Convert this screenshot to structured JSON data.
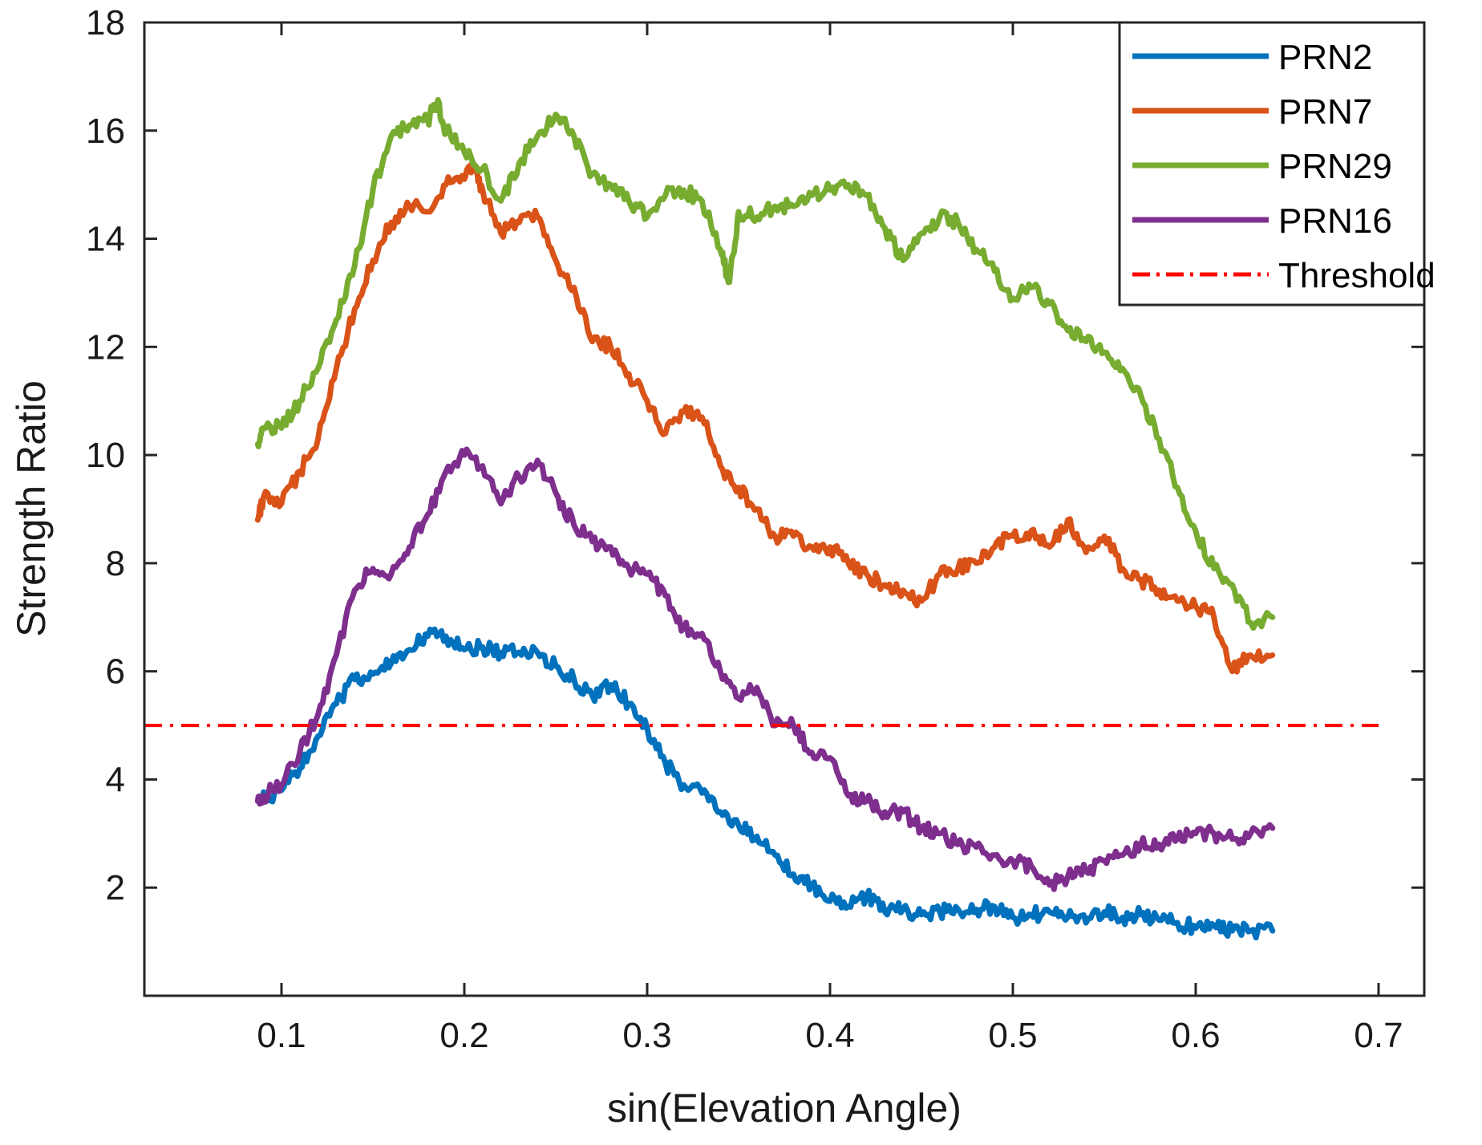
{
  "chart_data": {
    "type": "line",
    "title": "",
    "xlabel": "sin(Elevation Angle)",
    "ylabel": "Strength Ratio",
    "xlim": [
      0.025,
      0.725
    ],
    "ylim": [
      0,
      18
    ],
    "xticks": [
      0.1,
      0.2,
      0.3,
      0.4,
      0.5,
      0.6,
      0.7
    ],
    "xtick_labels": [
      "0.1",
      "0.2",
      "0.3",
      "0.4",
      "0.5",
      "0.6",
      "0.7"
    ],
    "yticks": [
      2,
      4,
      6,
      8,
      10,
      12,
      14,
      16,
      18
    ],
    "ytick_labels": [
      "2",
      "4",
      "6",
      "8",
      "10",
      "12",
      "14",
      "16",
      "18"
    ],
    "grid": false,
    "legend_position": "top-right",
    "series": [
      {
        "name": "PRN2",
        "color": "#0072BD",
        "x": [
          0.087,
          0.1,
          0.11,
          0.12,
          0.13,
          0.14,
          0.15,
          0.16,
          0.17,
          0.18,
          0.19,
          0.2,
          0.21,
          0.22,
          0.23,
          0.24,
          0.25,
          0.26,
          0.27,
          0.28,
          0.29,
          0.3,
          0.31,
          0.32,
          0.33,
          0.34,
          0.35,
          0.36,
          0.37,
          0.38,
          0.39,
          0.4,
          0.41,
          0.42,
          0.43,
          0.44,
          0.45,
          0.46,
          0.47,
          0.48,
          0.49,
          0.5,
          0.51,
          0.52,
          0.53,
          0.54,
          0.55,
          0.56,
          0.57,
          0.58,
          0.59,
          0.6,
          0.61,
          0.62,
          0.63,
          0.642
        ],
        "y": [
          3.6,
          3.8,
          4.2,
          4.8,
          5.4,
          5.85,
          5.95,
          6.15,
          6.4,
          6.65,
          6.65,
          6.4,
          6.45,
          6.35,
          6.35,
          6.35,
          6.1,
          5.85,
          5.55,
          5.75,
          5.4,
          4.95,
          4.3,
          3.9,
          3.75,
          3.4,
          3.15,
          2.95,
          2.6,
          2.25,
          2.05,
          1.75,
          1.65,
          1.85,
          1.55,
          1.6,
          1.5,
          1.55,
          1.6,
          1.6,
          1.65,
          1.45,
          1.5,
          1.55,
          1.45,
          1.35,
          1.55,
          1.45,
          1.5,
          1.4,
          1.35,
          1.25,
          1.3,
          1.2,
          1.2,
          1.2
        ]
      },
      {
        "name": "PRN7",
        "color": "#D95319",
        "x": [
          0.087,
          0.09,
          0.1,
          0.11,
          0.12,
          0.13,
          0.14,
          0.15,
          0.16,
          0.17,
          0.18,
          0.19,
          0.2,
          0.205,
          0.21,
          0.22,
          0.23,
          0.24,
          0.25,
          0.26,
          0.27,
          0.28,
          0.29,
          0.3,
          0.31,
          0.32,
          0.33,
          0.34,
          0.35,
          0.36,
          0.37,
          0.38,
          0.39,
          0.4,
          0.41,
          0.42,
          0.43,
          0.44,
          0.45,
          0.46,
          0.47,
          0.48,
          0.49,
          0.5,
          0.51,
          0.52,
          0.53,
          0.54,
          0.55,
          0.56,
          0.57,
          0.58,
          0.59,
          0.6,
          0.61,
          0.62,
          0.63,
          0.642
        ],
        "y": [
          8.8,
          9.2,
          9.1,
          9.7,
          10.3,
          11.6,
          12.7,
          13.6,
          14.3,
          14.6,
          14.5,
          15.0,
          15.1,
          15.4,
          14.9,
          14.1,
          14.3,
          14.4,
          13.6,
          13.1,
          12.1,
          12.0,
          11.5,
          11.0,
          10.4,
          10.8,
          10.7,
          9.8,
          9.4,
          9.0,
          8.5,
          8.5,
          8.3,
          8.3,
          8.0,
          7.8,
          7.6,
          7.5,
          7.3,
          7.8,
          7.9,
          8.0,
          8.3,
          8.5,
          8.6,
          8.3,
          8.8,
          8.2,
          8.5,
          7.9,
          7.7,
          7.5,
          7.3,
          7.2,
          7.0,
          6.0,
          6.3,
          6.3
        ]
      },
      {
        "name": "PRN29",
        "color": "#77AC30",
        "x": [
          0.087,
          0.09,
          0.1,
          0.11,
          0.12,
          0.13,
          0.14,
          0.15,
          0.16,
          0.17,
          0.18,
          0.185,
          0.19,
          0.2,
          0.21,
          0.22,
          0.23,
          0.24,
          0.25,
          0.26,
          0.27,
          0.28,
          0.29,
          0.3,
          0.31,
          0.32,
          0.33,
          0.34,
          0.345,
          0.35,
          0.36,
          0.37,
          0.38,
          0.39,
          0.4,
          0.41,
          0.42,
          0.43,
          0.44,
          0.45,
          0.46,
          0.47,
          0.48,
          0.49,
          0.5,
          0.51,
          0.52,
          0.53,
          0.54,
          0.55,
          0.56,
          0.57,
          0.58,
          0.59,
          0.6,
          0.61,
          0.62,
          0.63,
          0.642
        ],
        "y": [
          10.2,
          10.5,
          10.5,
          11.0,
          11.6,
          12.5,
          13.5,
          14.9,
          15.9,
          16.1,
          16.2,
          16.5,
          16.0,
          15.6,
          15.3,
          14.7,
          15.4,
          15.9,
          16.3,
          15.9,
          15.2,
          15.0,
          14.7,
          14.4,
          14.8,
          14.9,
          14.7,
          13.8,
          13.2,
          14.5,
          14.4,
          14.6,
          14.6,
          14.8,
          14.9,
          15.0,
          14.8,
          14.2,
          13.6,
          14.1,
          14.4,
          14.3,
          13.8,
          13.4,
          12.9,
          13.1,
          12.8,
          12.3,
          12.1,
          11.9,
          11.6,
          11.1,
          10.3,
          9.4,
          8.6,
          7.9,
          7.6,
          6.9,
          7.0
        ]
      },
      {
        "name": "PRN16",
        "color": "#7E2F8E",
        "x": [
          0.087,
          0.09,
          0.1,
          0.11,
          0.12,
          0.13,
          0.14,
          0.15,
          0.16,
          0.17,
          0.18,
          0.19,
          0.2,
          0.21,
          0.22,
          0.23,
          0.24,
          0.25,
          0.26,
          0.27,
          0.28,
          0.29,
          0.3,
          0.31,
          0.32,
          0.33,
          0.34,
          0.35,
          0.36,
          0.37,
          0.38,
          0.39,
          0.4,
          0.41,
          0.42,
          0.43,
          0.44,
          0.45,
          0.46,
          0.47,
          0.48,
          0.49,
          0.5,
          0.51,
          0.52,
          0.53,
          0.54,
          0.55,
          0.56,
          0.57,
          0.58,
          0.59,
          0.6,
          0.61,
          0.62,
          0.63,
          0.642
        ],
        "y": [
          3.6,
          3.7,
          3.9,
          4.5,
          5.2,
          6.3,
          7.5,
          7.9,
          7.8,
          8.3,
          8.9,
          9.7,
          10.0,
          9.8,
          9.1,
          9.6,
          9.9,
          9.3,
          8.7,
          8.4,
          8.3,
          7.9,
          7.8,
          7.4,
          6.8,
          6.7,
          6.0,
          5.5,
          5.7,
          5.0,
          5.0,
          4.5,
          4.4,
          3.7,
          3.6,
          3.4,
          3.4,
          3.1,
          3.0,
          2.8,
          2.75,
          2.6,
          2.5,
          2.4,
          2.05,
          2.2,
          2.3,
          2.5,
          2.6,
          2.8,
          2.8,
          2.9,
          3.0,
          3.0,
          2.9,
          3.0,
          3.1
        ]
      },
      {
        "name": "Threshold",
        "color": "#FF0000",
        "dash": "dash-dot",
        "x": [
          0.025,
          0.7
        ],
        "y": [
          5,
          5
        ]
      }
    ]
  }
}
